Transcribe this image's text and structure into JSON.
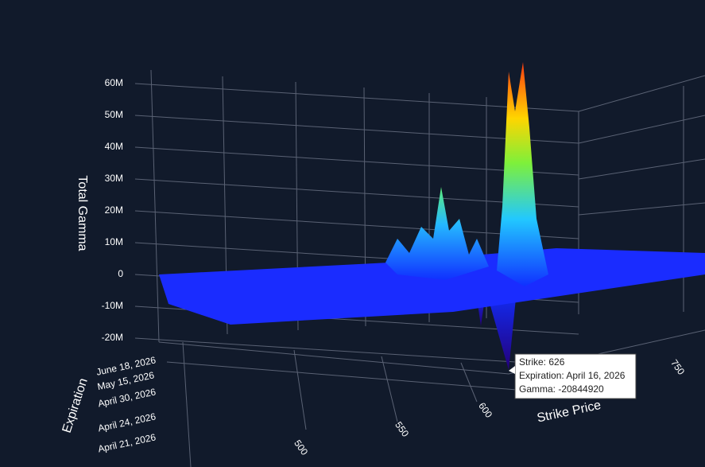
{
  "chart_data": {
    "type": "surface",
    "z_axis_label": "Total Gamma",
    "x_axis_label": "Strike Price",
    "y_axis_label": "Expiration",
    "zlim": [
      -20000000,
      60000000
    ],
    "zticks": [
      {
        "value": 60000000,
        "label": "60M"
      },
      {
        "value": 50000000,
        "label": "50M"
      },
      {
        "value": 40000000,
        "label": "40M"
      },
      {
        "value": 30000000,
        "label": "30M"
      },
      {
        "value": 20000000,
        "label": "20M"
      },
      {
        "value": 10000000,
        "label": "10M"
      },
      0,
      {
        "value": -10000000,
        "label": "-10M"
      },
      {
        "value": -20000000,
        "label": "-20M"
      }
    ],
    "xticks": [
      500,
      550,
      600,
      750
    ],
    "yticks": [
      "June 18, 2026",
      "May 15, 2026",
      "April 30, 2026",
      "April 24, 2026",
      "April 21, 2026"
    ],
    "tooltip": [
      "Strike: 626",
      "Expiration: April 16, 2026",
      "Gamma: -20844920"
    ]
  }
}
